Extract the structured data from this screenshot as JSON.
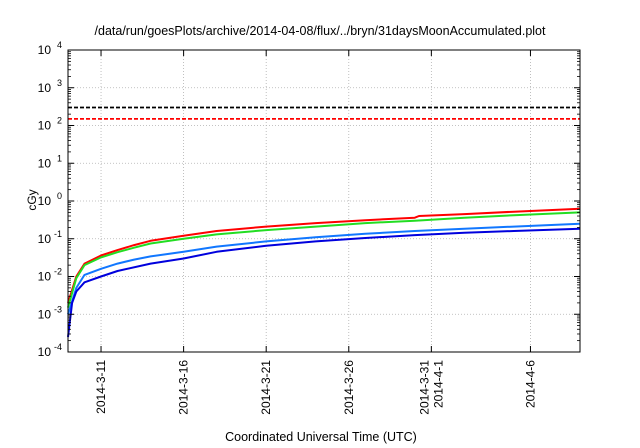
{
  "chart_data": {
    "type": "line",
    "title": "/data/run/goesPlots/archive/2014-04-08/flux/../bryn/31daysMoonAccumulated.plot",
    "xlabel": "Coordinated Universal Time (UTC)",
    "ylabel": "cGy",
    "yscale": "log",
    "grid": true,
    "ylim": [
      0.0001,
      10000
    ],
    "xlim": [
      "2014-03-09",
      "2014-04-09"
    ],
    "y_ticks": [
      {
        "base": "10",
        "exp": "-4",
        "value": 0.0001
      },
      {
        "base": "10",
        "exp": "-3",
        "value": 0.001
      },
      {
        "base": "10",
        "exp": "-2",
        "value": 0.01
      },
      {
        "base": "10",
        "exp": "-1",
        "value": 0.1
      },
      {
        "base": "10",
        "exp": "0",
        "value": 1
      },
      {
        "base": "10",
        "exp": "1",
        "value": 10
      },
      {
        "base": "10",
        "exp": "2",
        "value": 100
      },
      {
        "base": "10",
        "exp": "3",
        "value": 1000
      },
      {
        "base": "10",
        "exp": "4",
        "value": 10000
      }
    ],
    "x_ticks": [
      {
        "date": "2014-03-11",
        "lines": [
          "2014-3-11"
        ]
      },
      {
        "date": "2014-03-16",
        "lines": [
          "2014-3-16"
        ]
      },
      {
        "date": "2014-03-21",
        "lines": [
          "2014-3-21"
        ]
      },
      {
        "date": "2014-03-26",
        "lines": [
          "2014-3-26"
        ]
      },
      {
        "date": "2014-03-31",
        "lines": [
          "2014-3-31",
          "2014-4-1"
        ]
      },
      {
        "date": "2014-04-06",
        "lines": [
          "2014-4-6"
        ]
      }
    ],
    "reference_lines": [
      {
        "y": 300,
        "color": "#000000",
        "dash": true
      },
      {
        "y": 150,
        "color": "#ff0000",
        "dash": true
      }
    ],
    "series": [
      {
        "color": "#ff0000",
        "x": [
          "2014-03-09",
          "2014-03-09T12",
          "2014-03-10",
          "2014-03-11",
          "2014-03-12",
          "2014-03-13",
          "2014-03-14",
          "2014-03-16",
          "2014-03-18",
          "2014-03-21",
          "2014-03-24",
          "2014-03-27",
          "2014-03-30",
          "2014-03-30T06",
          "2014-04-02",
          "2014-04-05",
          "2014-04-09"
        ],
        "y": [
          0.002,
          0.01,
          0.022,
          0.036,
          0.05,
          0.068,
          0.088,
          0.12,
          0.16,
          0.21,
          0.26,
          0.31,
          0.36,
          0.4,
          0.45,
          0.52,
          0.62
        ]
      },
      {
        "color": "#22dd22",
        "x": [
          "2014-03-09",
          "2014-03-09T12",
          "2014-03-10",
          "2014-03-11",
          "2014-03-12",
          "2014-03-13",
          "2014-03-14",
          "2014-03-16",
          "2014-03-18",
          "2014-03-21",
          "2014-03-24",
          "2014-03-27",
          "2014-03-30",
          "2014-04-02",
          "2014-04-05",
          "2014-04-09"
        ],
        "y": [
          0.0015,
          0.009,
          0.02,
          0.032,
          0.044,
          0.058,
          0.075,
          0.1,
          0.13,
          0.17,
          0.21,
          0.26,
          0.3,
          0.36,
          0.42,
          0.5
        ]
      },
      {
        "color": "#1177ff",
        "x": [
          "2014-03-09",
          "2014-03-09T12",
          "2014-03-10",
          "2014-03-11",
          "2014-03-12",
          "2014-03-13",
          "2014-03-14",
          "2014-03-16",
          "2014-03-18",
          "2014-03-21",
          "2014-03-24",
          "2014-03-27",
          "2014-03-30",
          "2014-04-02",
          "2014-04-05",
          "2014-04-09"
        ],
        "y": [
          0.001,
          0.005,
          0.011,
          0.016,
          0.022,
          0.028,
          0.034,
          0.045,
          0.062,
          0.085,
          0.11,
          0.135,
          0.16,
          0.185,
          0.21,
          0.25
        ]
      },
      {
        "color": "#0000dd",
        "x": [
          "2014-03-09",
          "2014-03-09T06",
          "2014-03-09T12",
          "2014-03-10",
          "2014-03-11",
          "2014-03-12",
          "2014-03-14",
          "2014-03-16",
          "2014-03-18",
          "2014-03-21",
          "2014-03-24",
          "2014-03-27",
          "2014-03-30",
          "2014-04-02",
          "2014-04-05",
          "2014-04-09"
        ],
        "y": [
          0.00025,
          0.002,
          0.004,
          0.007,
          0.01,
          0.014,
          0.022,
          0.03,
          0.045,
          0.065,
          0.085,
          0.105,
          0.125,
          0.145,
          0.16,
          0.185
        ]
      }
    ]
  }
}
